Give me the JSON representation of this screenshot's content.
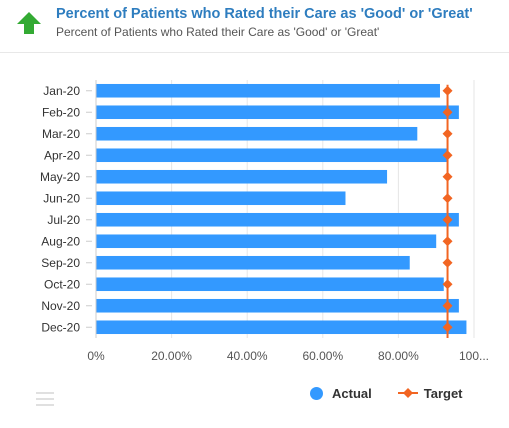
{
  "header": {
    "title": "Percent of Patients who Rated their Care as 'Good' or 'Great'",
    "subtitle": "Percent of Patients who Rated their Care as 'Good' or 'Great'",
    "trend_icon": "up-arrow-icon",
    "trend_color": "#33aa33"
  },
  "legend": {
    "actual_label": "Actual",
    "target_label": "Target"
  },
  "colors": {
    "actual": "#3399ff",
    "target": "#f26522"
  },
  "chart_data": {
    "type": "bar",
    "orientation": "horizontal",
    "categories": [
      "Jan-20",
      "Feb-20",
      "Mar-20",
      "Apr-20",
      "May-20",
      "Jun-20",
      "Jul-20",
      "Aug-20",
      "Sep-20",
      "Oct-20",
      "Nov-20",
      "Dec-20"
    ],
    "series": [
      {
        "name": "Actual",
        "type": "bar",
        "values": [
          91,
          96,
          85,
          93,
          77,
          66,
          96,
          90,
          83,
          92,
          96,
          98
        ]
      },
      {
        "name": "Target",
        "type": "line",
        "values": [
          93,
          93,
          93,
          93,
          93,
          93,
          93,
          93,
          93,
          93,
          93,
          93
        ]
      }
    ],
    "xlim": [
      0,
      100
    ],
    "x_ticks": [
      "0%",
      "20.00%",
      "40.00%",
      "60.00%",
      "80.00%",
      "100..."
    ],
    "grid": true,
    "legend_position": "bottom-right"
  }
}
